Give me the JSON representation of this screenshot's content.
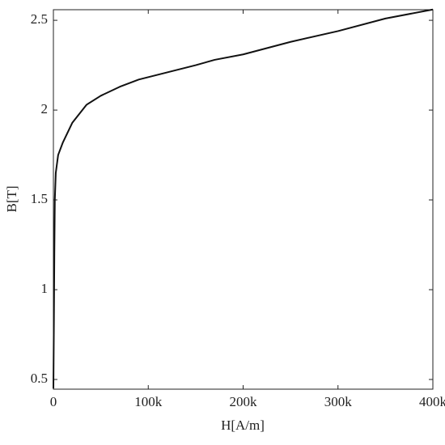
{
  "chart_data": {
    "type": "line",
    "x_label": "H[A/m]",
    "y_label": "B[T]",
    "x": [
      0,
      500,
      1000,
      1500,
      2500,
      5000,
      10000,
      20000,
      35000,
      50000,
      70000,
      90000,
      120000,
      150000,
      170000,
      200000,
      250000,
      300000,
      350000,
      400000
    ],
    "series": [
      {
        "color": "#111111",
        "values": [
          0.45,
          0.8,
          1.2,
          1.5,
          1.65,
          1.75,
          1.82,
          1.93,
          2.03,
          2.08,
          2.13,
          2.17,
          2.21,
          2.25,
          2.28,
          2.31,
          2.38,
          2.44,
          2.51,
          2.56
        ]
      }
    ],
    "xlim": [
      0,
      400000
    ],
    "xticks": [
      0,
      {
        "value": 100000,
        "label": "100k"
      },
      {
        "value": 200000,
        "label": "200k"
      },
      {
        "value": 300000,
        "label": "300k"
      },
      {
        "value": 400000,
        "label": "400k"
      }
    ],
    "ylim": [
      0.446,
      2.559
    ],
    "yticks": [
      0.5,
      1,
      1.5,
      2,
      2.5
    ]
  }
}
